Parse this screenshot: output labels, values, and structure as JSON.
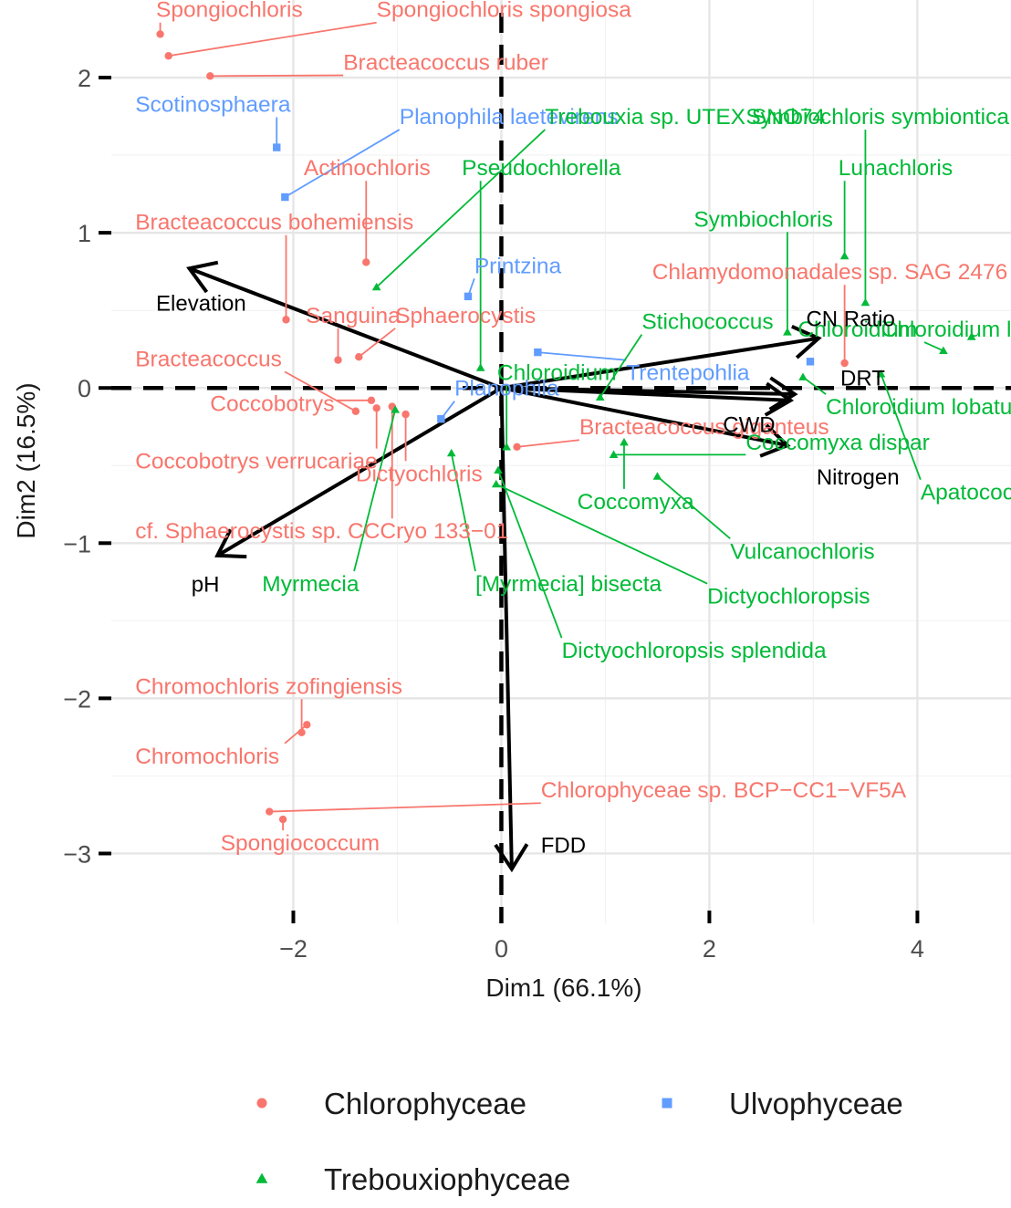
{
  "chart_data": {
    "type": "scatter",
    "xlabel": "Dim1 (66.1%)",
    "ylabel": "Dim2 (16.5%)",
    "xlim": [
      -3.75,
      4.9
    ],
    "ylim": [
      -3.45,
      2.5
    ],
    "xticks": [
      -2,
      0,
      2,
      4
    ],
    "yticks": [
      -3,
      -2,
      -1,
      0,
      1,
      2
    ],
    "xtick_labels": [
      "−2",
      "0",
      "2",
      "4"
    ],
    "ytick_labels": [
      "−3",
      "−2",
      "−1",
      "0",
      "1",
      "2"
    ],
    "grid": true,
    "legend_position": "bottom",
    "colors": {
      "Chlorophyceae": "#f8766d",
      "Ulvophyceae": "#619cff",
      "Trebouxiophyceae": "#00ba38",
      "arrows": "#000000",
      "reference_lines": "#000000"
    },
    "legend": [
      {
        "name": "Chlorophyceae",
        "shape": "circle"
      },
      {
        "name": "Ulvophyceae",
        "shape": "square"
      },
      {
        "name": "Trebouxiophyceae",
        "shape": "triangle"
      }
    ],
    "series": [
      {
        "name": "Chlorophyceae",
        "points": [
          {
            "x": -3.28,
            "y": 2.28,
            "label": "Spongiochloris",
            "lx": -3.32,
            "ly": 2.39
          },
          {
            "x": -3.2,
            "y": 2.14,
            "label": "Spongiochloris spongiosa",
            "lx": -1.2,
            "ly": 2.39
          },
          {
            "x": -2.8,
            "y": 2.01,
            "label": "Bracteacoccus ruber",
            "lx": -1.52,
            "ly": 2.05
          },
          {
            "x": -1.3,
            "y": 0.81,
            "label": "Actinochloris",
            "lx": -1.9,
            "ly": 1.37
          },
          {
            "x": -2.07,
            "y": 0.44,
            "label": "Bracteacoccus bohemiensis",
            "lx": -3.52,
            "ly": 1.02
          },
          {
            "x": -1.57,
            "y": 0.18,
            "label": "Sanguina",
            "lx": -1.88,
            "ly": 0.42
          },
          {
            "x": -1.37,
            "y": 0.2,
            "label": "Sphaerocystis",
            "lx": -1.02,
            "ly": 0.42
          },
          {
            "x": -1.4,
            "y": -0.15,
            "label": "Bracteacoccus",
            "lx": -3.52,
            "ly": 0.14
          },
          {
            "x": -1.25,
            "y": -0.08,
            "label": "Coccobotrys",
            "lx": -2.8,
            "ly": -0.15
          },
          {
            "x": -1.2,
            "y": -0.13,
            "label": "Coccobotrys verrucariae",
            "lx": -3.52,
            "ly": -0.52
          },
          {
            "x": -0.92,
            "y": -0.17,
            "label": "Dictyochloris",
            "lx": -1.4,
            "ly": -0.6
          },
          {
            "x": -1.05,
            "y": -0.12,
            "label": "cf. Sphaerocystis sp. CCCryo 133−01",
            "lx": -3.52,
            "ly": -0.97
          },
          {
            "x": 0.15,
            "y": -0.38,
            "label": "Bracteacoccus giganteus",
            "lx": 0.75,
            "ly": -0.3
          },
          {
            "x": 3.3,
            "y": 0.16,
            "label": "Chlamydomonadales sp. SAG 2476",
            "lx": 1.45,
            "ly": 0.7
          },
          {
            "x": -1.92,
            "y": -2.22,
            "label": "Chromochloris zofingiensis",
            "lx": -3.52,
            "ly": -1.97
          },
          {
            "x": -1.87,
            "y": -2.17,
            "label": "Chromochloris",
            "lx": -3.52,
            "ly": -2.42
          },
          {
            "x": -2.23,
            "y": -2.73,
            "label": "Chlorophyceae sp. BCP−CC1−VF5A",
            "lx": 0.38,
            "ly": -2.64
          },
          {
            "x": -2.1,
            "y": -2.78,
            "label": "Spongiococcum",
            "lx": -2.7,
            "ly": -2.98
          }
        ]
      },
      {
        "name": "Ulvophyceae",
        "points": [
          {
            "x": -2.16,
            "y": 1.55,
            "label": "Scotinosphaera",
            "lx": -3.52,
            "ly": 1.78
          },
          {
            "x": -2.08,
            "y": 1.23,
            "label": "Planophila laetevirens",
            "lx": -0.98,
            "ly": 1.7
          },
          {
            "x": -0.32,
            "y": 0.59,
            "label": "Printzina",
            "lx": -0.26,
            "ly": 0.74
          },
          {
            "x": 0.35,
            "y": 0.23,
            "label": "Trentepohlia",
            "lx": 1.2,
            "ly": 0.05
          },
          {
            "x": -0.58,
            "y": -0.2,
            "label": "Planophila",
            "lx": -0.45,
            "ly": -0.05
          },
          {
            "x": 2.97,
            "y": 0.17,
            "label": "",
            "lx": 0,
            "ly": 0
          }
        ]
      },
      {
        "name": "Trebouxiophyceae",
        "points": [
          {
            "x": -1.2,
            "y": 0.65,
            "label": "Trebouxia sp. UTEX SNO74",
            "lx": 0.42,
            "ly": 1.7
          },
          {
            "x": -0.2,
            "y": 0.13,
            "label": "Pseudochlorella",
            "lx": -0.38,
            "ly": 1.37
          },
          {
            "x": 3.3,
            "y": 0.85,
            "label": "Lunachloris",
            "lx": 3.24,
            "ly": 1.37
          },
          {
            "x": 3.5,
            "y": 0.55,
            "label": "Symbiochloris symbiontica",
            "lx": 2.35,
            "ly": 1.7
          },
          {
            "x": 2.75,
            "y": 0.36,
            "label": "Symbiochloris",
            "lx": 1.85,
            "ly": 1.04
          },
          {
            "x": 0.95,
            "y": -0.06,
            "label": "Stichococcus",
            "lx": 1.35,
            "ly": 0.38
          },
          {
            "x": 4.52,
            "y": 0.33,
            "label": "Chloroidium laureanum",
            "lx": 3.65,
            "ly": 0.33
          },
          {
            "x": 4.25,
            "y": 0.24,
            "label": "Chloroidium",
            "lx": 2.85,
            "ly": 0.33
          },
          {
            "x": 2.9,
            "y": 0.07,
            "label": "Chloroidium lobatum",
            "lx": 3.12,
            "ly": -0.17
          },
          {
            "x": 3.65,
            "y": 0.09,
            "label": "Apatococcus",
            "lx": 4.03,
            "ly": -0.72
          },
          {
            "x": 1.08,
            "y": -0.43,
            "label": "Coccomyxa dispar",
            "lx": 2.35,
            "ly": -0.4
          },
          {
            "x": 1.18,
            "y": -0.35,
            "label": "Coccomyxa",
            "lx": 0.73,
            "ly": -0.78
          },
          {
            "x": 1.5,
            "y": -0.57,
            "label": "Vulcanochloris",
            "lx": 2.2,
            "ly": -1.1
          },
          {
            "x": 0.05,
            "y": -0.38,
            "label": "Chloroidium",
            "lx": -0.04,
            "ly": 0.05
          },
          {
            "x": -0.05,
            "y": -0.62,
            "label": "Dictyochloropsis",
            "lx": 1.98,
            "ly": -1.39
          },
          {
            "x": -0.48,
            "y": -0.42,
            "label": "[Myrmecia] bisecta",
            "lx": -0.25,
            "ly": -1.31
          },
          {
            "x": -0.03,
            "y": -0.53,
            "label": "Dictyochloropsis splendida",
            "lx": 0.58,
            "ly": -1.74
          },
          {
            "x": -1.02,
            "y": -0.14,
            "label": "Myrmecia",
            "lx": -2.3,
            "ly": -1.31
          }
        ]
      }
    ],
    "arrows": [
      {
        "label": "Elevation",
        "x": -3.0,
        "y": 0.77,
        "lx": -3.32,
        "ly": 0.55
      },
      {
        "label": "CN Ratio",
        "x": 3.05,
        "y": 0.32,
        "lx": 2.93,
        "ly": 0.45
      },
      {
        "label": "DRT",
        "x": 2.82,
        "y": -0.04,
        "lx": 3.26,
        "ly": 0.07
      },
      {
        "label": "CWD",
        "x": 2.78,
        "y": -0.08,
        "lx": 2.13,
        "ly": -0.23
      },
      {
        "label": "Nitrogen",
        "x": 2.75,
        "y": -0.37,
        "lx": 3.03,
        "ly": -0.57
      },
      {
        "label": "pH",
        "x": -2.73,
        "y": -1.08,
        "lx": -2.98,
        "ly": -1.26
      },
      {
        "label": "FDD",
        "x": 0.1,
        "y": -3.1,
        "lx": 0.38,
        "ly": -2.94
      }
    ]
  }
}
